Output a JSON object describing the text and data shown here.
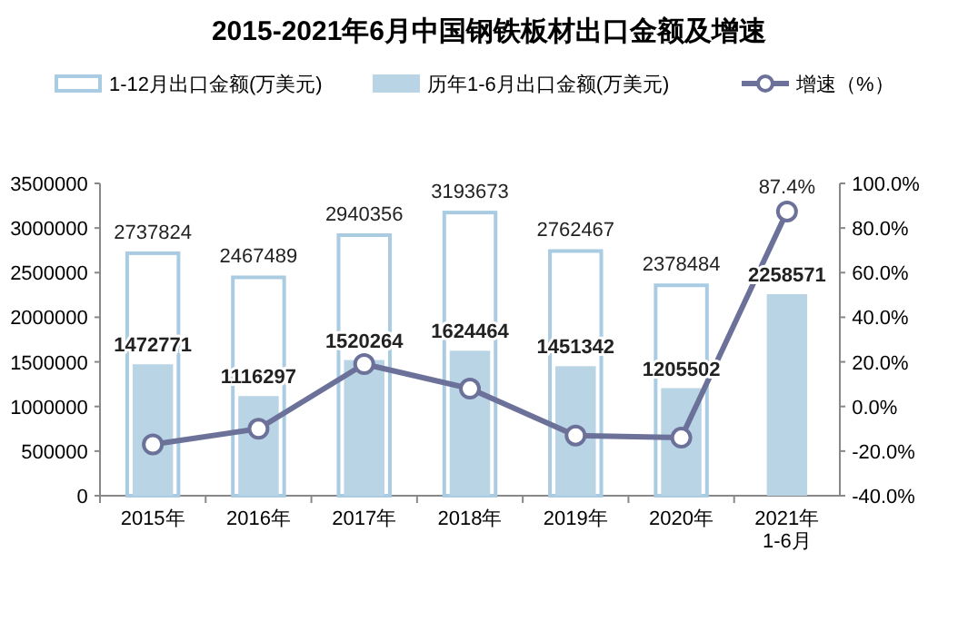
{
  "chart_data": {
    "type": "bar",
    "title": "2015-2021年6月中国钢铁板材出口金额及增速",
    "categories": [
      "2015年",
      "2016年",
      "2017年",
      "2018年",
      "2019年",
      "2020年",
      "2021年\n1-6月"
    ],
    "series": [
      {
        "name": "1-12月出口金额(万美元)",
        "color": "#a9cce3",
        "values": [
          2737824,
          2467489,
          2940356,
          3193673,
          2762467,
          2378484,
          null
        ],
        "value_labels": [
          "2737824",
          "2467489",
          "2940356",
          "3193673",
          "2762467",
          "2378484",
          null
        ]
      },
      {
        "name": "历年1-6月出口金额(万美元)",
        "color": "#b8d4e5",
        "values": [
          1472771,
          1116297,
          1520264,
          1624464,
          1451342,
          1205502,
          2258571
        ],
        "value_labels": [
          "1472771",
          "1116297",
          "1520264",
          "1624464",
          "1451342",
          "1205502",
          "2258571"
        ]
      },
      {
        "name": "增速（%）",
        "type": "line",
        "axis": "y2",
        "color": "#6c7199",
        "marker": "circle",
        "values": [
          -17,
          -10,
          19,
          8,
          -13,
          -14,
          87.4
        ],
        "value_labels": [
          null,
          null,
          null,
          null,
          null,
          null,
          "87.4%"
        ]
      }
    ],
    "ylim": [
      0,
      3500000
    ],
    "yticks": [
      0,
      500000,
      1000000,
      1500000,
      2000000,
      2500000,
      3000000,
      3500000
    ],
    "y2lim": [
      -40,
      100
    ],
    "y2ticks": [
      {
        "value": -40,
        "label": "-40.0%"
      },
      {
        "value": -20,
        "label": "-20.0%"
      },
      {
        "value": 0,
        "label": "0.0%"
      },
      {
        "value": 20,
        "label": "20.0%"
      },
      {
        "value": 40,
        "label": "40.0%"
      },
      {
        "value": 60,
        "label": "60.0%"
      },
      {
        "value": 80,
        "label": "80.0%"
      },
      {
        "value": 100,
        "label": "100.0%"
      }
    ],
    "legend": "top",
    "grid": false
  }
}
